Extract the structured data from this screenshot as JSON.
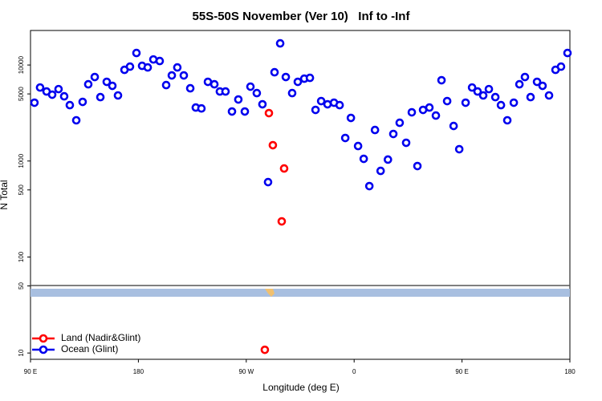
{
  "chart_data": {
    "type": "scatter",
    "title": "55S-50S November (Ver 10)   Inf to -Inf",
    "x_label": "Longitude (deg E)",
    "y_label": "N Total",
    "log_y": true,
    "legend": "bottom-left",
    "xlim": [
      90,
      540
    ],
    "xticks": [
      {
        "value": 90,
        "label": "90 E"
      },
      180,
      {
        "value": 270,
        "label": "90 W"
      },
      {
        "value": 360,
        "label": "0"
      },
      {
        "value": 450,
        "label": "90 E"
      },
      {
        "value": 540,
        "label": "180"
      }
    ],
    "ylim": [
      8.6,
      22900
    ],
    "yticks": [
      10,
      50,
      100,
      500,
      1000,
      5000,
      10000
    ],
    "series": [
      {
        "name": "Land (Nadir&Glint)",
        "color": "#ff0000",
        "x": [
          288.9,
          292.2,
          301.6,
          299.6,
          285.5
        ],
        "values": [
          3155,
          1462,
          836,
          235,
          10.8
        ]
      },
      {
        "name": "Ocean (Glint)",
        "color": "#0000ee",
        "x": [
          93.3,
          98.0,
          103.4,
          108.1,
          113.4,
          118.1,
          122.8,
          128.2,
          133.5,
          138.2,
          143.6,
          148.3,
          153.6,
          158.3,
          163.0,
          168.4,
          173.0,
          178.4,
          183.1,
          187.8,
          192.5,
          197.8,
          203.2,
          207.9,
          212.5,
          217.9,
          223.3,
          227.9,
          232.6,
          238.0,
          243.4,
          248.0,
          252.7,
          258.1,
          263.4,
          268.8,
          273.5,
          278.8,
          283.5,
          288.2,
          293.6,
          298.3,
          303.0,
          308.3,
          313.0,
          318.4,
          323.1,
          327.8,
          332.5,
          337.8,
          343.2,
          347.9,
          352.6,
          357.3,
          363.3,
          368.0,
          372.7,
          377.4,
          382.1,
          388.2,
          392.7,
          398.0,
          403.4,
          408.1,
          412.8,
          417.5,
          422.8,
          428.2,
          432.9,
          437.6,
          443.0,
          447.7,
          453.0,
          458.4,
          463.0,
          467.7,
          472.4,
          477.8,
          482.5,
          487.8,
          493.2,
          497.9,
          502.5,
          507.2,
          512.6,
          517.2,
          522.6,
          528.0,
          532.6,
          538.0
        ],
        "values": [
          4050,
          5830,
          5300,
          4910,
          5610,
          4720,
          3820,
          2655,
          4130,
          6300,
          7500,
          4630,
          6680,
          6070,
          4820,
          8910,
          9620,
          13340,
          9810,
          9440,
          11430,
          11010,
          6180,
          7790,
          9440,
          7790,
          5720,
          3605,
          3530,
          6680,
          6300,
          5300,
          5300,
          3280,
          4375,
          3280,
          5950,
          5100,
          3900,
          603,
          8410,
          16810,
          7500,
          5100,
          6680,
          7210,
          7350,
          3406,
          4210,
          3900,
          4050,
          3820,
          1738,
          2812,
          1432,
          1054,
          548,
          2104,
          789,
          1035,
          1913,
          2503,
          1549,
          3215,
          886,
          3406,
          3605,
          2976,
          6940,
          4210,
          2318,
          1327,
          4050,
          5830,
          5300,
          4820,
          5610,
          4630,
          3820,
          2655,
          4050,
          6300,
          7500,
          4630,
          6680,
          6070,
          4820,
          8910,
          9620,
          13340
        ]
      }
    ]
  }
}
